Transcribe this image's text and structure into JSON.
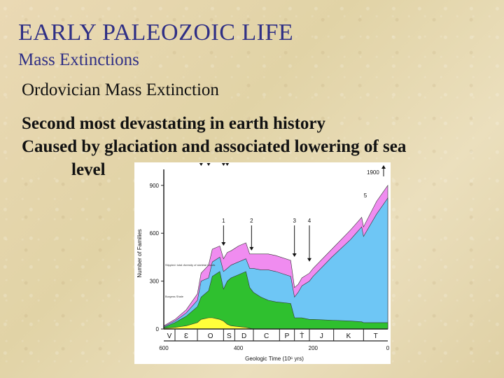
{
  "slide": {
    "title": "EARLY PALEOZOIC LIFE",
    "subtitle": "Mass Extinctions",
    "heading": "Ordovician Mass Extinction",
    "bullets": [
      "Second most devastating in earth history",
      "Caused by glaciation and associated lowering of sea",
      "level"
    ]
  },
  "figure": {
    "ylabel": "Number of Families",
    "xlabel": "Geologic Time (10⁶ yrs)",
    "y_ticks": [
      "0",
      "300",
      "600",
      "900"
    ],
    "x_ticks": [
      "600",
      "400",
      "200",
      "0"
    ],
    "periods": [
      "V",
      "Ɛ",
      "O",
      "S",
      "D",
      "C",
      "P",
      "T̀",
      "J",
      "K",
      "T"
    ],
    "event_numbers": [
      "1",
      "2",
      "3",
      "4",
      "5"
    ],
    "top_annotation_value": "1900",
    "side_labels": {
      "burgess": "Burgess Shale",
      "skeleton_text": "Stippled: total diversity of skeletal fossils"
    },
    "colors": {
      "pink": "#f08cf0",
      "blue": "#6ec6f5",
      "green": "#2fc02f",
      "yellow": "#ffff3a",
      "axis": "#222222"
    }
  },
  "chart_data": {
    "type": "area",
    "title": "",
    "xlabel": "Geologic Time (10⁶ yrs)",
    "ylabel": "Number of Families",
    "xlim": [
      600,
      0
    ],
    "ylim": [
      0,
      1000
    ],
    "x": [
      600,
      570,
      540,
      510,
      500,
      480,
      470,
      450,
      440,
      430,
      420,
      400,
      380,
      370,
      360,
      340,
      320,
      300,
      260,
      250,
      240,
      230,
      210,
      200,
      150,
      100,
      70,
      65,
      30,
      0
    ],
    "series": [
      {
        "name": "",
        "values": [
          20,
          60,
          120,
          220,
          350,
          400,
          500,
          520,
          440,
          480,
          490,
          520,
          540,
          470,
          470,
          470,
          470,
          460,
          430,
          260,
          280,
          320,
          350,
          380,
          500,
          620,
          700,
          640,
          800,
          900
        ]
      },
      {
        "name": "",
        "values": [
          15,
          50,
          100,
          180,
          300,
          320,
          420,
          450,
          360,
          380,
          400,
          420,
          440,
          380,
          380,
          370,
          370,
          360,
          330,
          200,
          230,
          270,
          300,
          330,
          450,
          560,
          640,
          580,
          720,
          820
        ]
      },
      {
        "name": "",
        "values": [
          10,
          40,
          80,
          140,
          200,
          240,
          330,
          360,
          250,
          300,
          320,
          340,
          360,
          260,
          230,
          200,
          180,
          170,
          160,
          70,
          70,
          70,
          60,
          60,
          55,
          50,
          45,
          40,
          40,
          40
        ]
      },
      {
        "name": "",
        "values": [
          5,
          10,
          20,
          40,
          60,
          70,
          70,
          60,
          50,
          30,
          20,
          15,
          10,
          5,
          0,
          0,
          0,
          0,
          0,
          0,
          0,
          0,
          0,
          0,
          0,
          0,
          0,
          0,
          0,
          0
        ]
      }
    ],
    "grid": false,
    "legend": "none"
  }
}
